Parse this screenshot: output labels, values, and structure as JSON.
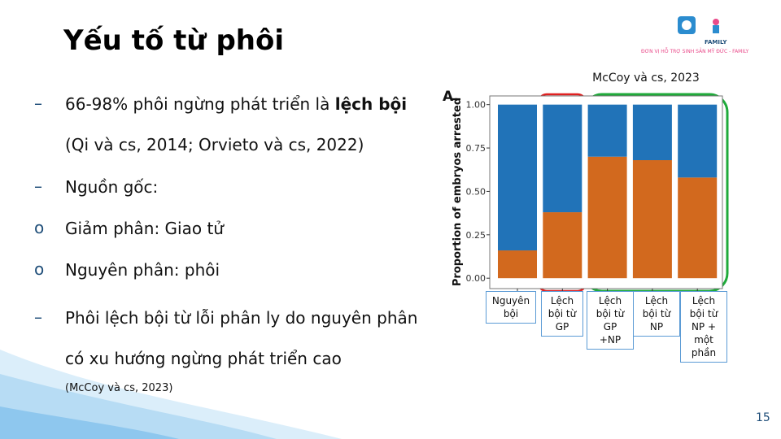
{
  "slide": {
    "title": "Yếu tố từ phôi",
    "logo_word": "FAMILY",
    "logo_caption": "ĐƠN VỊ HỖ TRỢ SINH SẢN MỸ ĐỨC - FAMILY",
    "bullets": [
      {
        "parts": [
          "66-98% phôi ngừng phát triển là ",
          "lệch bội",
          " (Qi và cs, 2014; Orvieto và cs, 2022)"
        ]
      },
      {
        "parts": [
          "Nguồn gốc:"
        ]
      },
      {
        "parts": [
          "Giảm phân: Giao tử"
        ]
      },
      {
        "parts": [
          "Nguyên phân: phôi"
        ]
      },
      {
        "parts": [
          "Phôi lệch bội từ lỗi phân ly do nguyên phân có xu hướng ngừng phát triển cao"
        ]
      }
    ],
    "citation": "(McCoy và cs, 2023)",
    "page_number": "15"
  },
  "chart_data": {
    "type": "stacked_bar",
    "panel_label": "A.",
    "annotation": "McCoy và cs, 2023",
    "y_label": "Proportion of embryos arrested",
    "categories": [
      "Nguyên bội",
      "Lệch bội từ GP",
      "Lệch bội từ GP +NP",
      "Lệch bội từ NP",
      "Lệch bội từ NP + một phần"
    ],
    "series": [
      {
        "color": "#d2691e",
        "values": [
          0.16,
          0.38,
          0.7,
          0.68,
          0.58
        ]
      },
      {
        "color": "#2173b8",
        "values": [
          0.84,
          0.62,
          0.3,
          0.32,
          0.42
        ]
      }
    ],
    "ylim": [
      -0.06,
      1.05
    ],
    "yticks": [
      {
        "value": 0,
        "label": "0.00"
      },
      {
        "value": 0.25,
        "label": "0.25"
      },
      {
        "value": 0.5,
        "label": "0.50"
      },
      {
        "value": 0.75,
        "label": "0.75"
      },
      {
        "value": 1,
        "label": "1.00"
      }
    ]
  }
}
